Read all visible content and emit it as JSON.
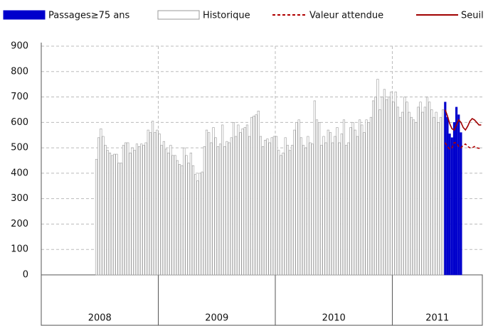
{
  "chart_data": {
    "type": "bar",
    "years": [
      "2008",
      "2009",
      "2010",
      "2011"
    ],
    "ylim": [
      0,
      900
    ],
    "yticks": [
      0,
      100,
      200,
      300,
      400,
      500,
      600,
      700,
      800,
      900
    ],
    "grid": true,
    "series": [
      {
        "name": "Passages≥75 ans",
        "type": "bar",
        "color": "#0000cc",
        "values": [
          null,
          null,
          null,
          null,
          null,
          null,
          null,
          null,
          null,
          null,
          null,
          null,
          null,
          null,
          null,
          null,
          null,
          null,
          null,
          null,
          null,
          null,
          null,
          null,
          null,
          null,
          null,
          null,
          null,
          null,
          null,
          null,
          null,
          null,
          null,
          null,
          null,
          null,
          null,
          null,
          null,
          null,
          null,
          null,
          null,
          null,
          null,
          null,
          null,
          null,
          null,
          null,
          null,
          null,
          null,
          null,
          null,
          null,
          null,
          null,
          null,
          null,
          null,
          null,
          null,
          null,
          null,
          null,
          null,
          null,
          null,
          null,
          null,
          null,
          null,
          null,
          null,
          null,
          null,
          null,
          null,
          null,
          null,
          null,
          null,
          null,
          null,
          null,
          null,
          null,
          null,
          null,
          null,
          null,
          null,
          null,
          null,
          null,
          null,
          null,
          null,
          null,
          null,
          null,
          null,
          null,
          null,
          null,
          null,
          null,
          null,
          null,
          null,
          null,
          null,
          null,
          null,
          null,
          null,
          null,
          null,
          null,
          null,
          null,
          null,
          null,
          null,
          null,
          null,
          null,
          null,
          null,
          null,
          null,
          null,
          null,
          null,
          null,
          null,
          null,
          null,
          null,
          null,
          null,
          null,
          null,
          null,
          null,
          null,
          null,
          null,
          null,
          null,
          null,
          null,
          null,
          null,
          null,
          null,
          null,
          null,
          null,
          null,
          null,
          null,
          null,
          null,
          null,
          null,
          null,
          null,
          null,
          null,
          null,
          null,
          null,
          null,
          null,
          null,
          680,
          620,
          555,
          540,
          600,
          660,
          630,
          560,
          null,
          null,
          null,
          null,
          null,
          null,
          null,
          null,
          null
        ]
      },
      {
        "name": "Historique",
        "type": "bar",
        "color": "#ffffff",
        "values": [
          null,
          null,
          null,
          null,
          null,
          null,
          null,
          null,
          null,
          null,
          null,
          null,
          null,
          null,
          null,
          null,
          null,
          null,
          null,
          null,
          null,
          null,
          null,
          null,
          455,
          540,
          575,
          545,
          510,
          490,
          480,
          470,
          475,
          475,
          440,
          440,
          510,
          520,
          520,
          480,
          500,
          490,
          515,
          505,
          515,
          510,
          520,
          570,
          560,
          605,
          560,
          570,
          555,
          510,
          525,
          495,
          480,
          510,
          470,
          470,
          450,
          435,
          430,
          500,
          470,
          440,
          480,
          430,
          395,
          370,
          400,
          405,
          505,
          570,
          560,
          520,
          580,
          540,
          505,
          515,
          590,
          505,
          525,
          520,
          540,
          600,
          545,
          590,
          560,
          575,
          580,
          590,
          545,
          620,
          625,
          630,
          645,
          545,
          505,
          530,
          535,
          520,
          540,
          545,
          545,
          490,
          470,
          480,
          540,
          510,
          490,
          510,
          570,
          600,
          610,
          540,
          510,
          500,
          545,
          520,
          515,
          685,
          610,
          600,
          510,
          545,
          520,
          570,
          560,
          520,
          545,
          580,
          520,
          555,
          610,
          510,
          520,
          580,
          600,
          570,
          545,
          610,
          590,
          560,
          610,
          600,
          620,
          685,
          700,
          770,
          650,
          700,
          730,
          690,
          700,
          720,
          680,
          720,
          660,
          620,
          640,
          700,
          680,
          640,
          620,
          610,
          600,
          660,
          680,
          640,
          660,
          700,
          680,
          650,
          620,
          640,
          600,
          620,
          650,
          null,
          null,
          null,
          null,
          null,
          null,
          null,
          null,
          null,
          null,
          null,
          null,
          null,
          null,
          null,
          null,
          null
        ]
      },
      {
        "name": "Valeur attendue",
        "type": "line",
        "dashed": true,
        "color": "#b00000",
        "values": [
          null,
          null,
          null,
          null,
          null,
          null,
          null,
          null,
          null,
          null,
          null,
          null,
          null,
          null,
          null,
          null,
          null,
          null,
          null,
          null,
          null,
          null,
          null,
          null,
          null,
          null,
          null,
          null,
          null,
          null,
          null,
          null,
          null,
          null,
          null,
          null,
          null,
          null,
          null,
          null,
          null,
          null,
          null,
          null,
          null,
          null,
          null,
          null,
          null,
          null,
          null,
          null,
          null,
          null,
          null,
          null,
          null,
          null,
          null,
          null,
          null,
          null,
          null,
          null,
          null,
          null,
          null,
          null,
          null,
          null,
          null,
          null,
          null,
          null,
          null,
          null,
          null,
          null,
          null,
          null,
          null,
          null,
          null,
          null,
          null,
          null,
          null,
          null,
          null,
          null,
          null,
          null,
          null,
          null,
          null,
          null,
          null,
          null,
          null,
          null,
          null,
          null,
          null,
          null,
          null,
          null,
          null,
          null,
          null,
          null,
          null,
          null,
          null,
          null,
          null,
          null,
          null,
          null,
          null,
          null,
          null,
          null,
          null,
          null,
          null,
          null,
          null,
          null,
          null,
          null,
          null,
          null,
          null,
          null,
          null,
          null,
          null,
          null,
          null,
          null,
          null,
          null,
          null,
          null,
          null,
          null,
          null,
          null,
          null,
          null,
          null,
          null,
          null,
          null,
          null,
          null,
          null,
          null,
          null,
          null,
          null,
          null,
          null,
          null,
          null,
          null,
          null,
          null,
          null,
          null,
          null,
          null,
          null,
          null,
          null,
          null,
          null,
          null,
          null,
          520,
          505,
          495,
          500,
          520,
          520,
          505,
          500,
          510,
          515,
          505,
          500,
          500,
          505,
          500,
          498,
          500
        ]
      },
      {
        "name": "Seuil",
        "type": "line",
        "dashed": false,
        "color": "#a00000",
        "values": [
          null,
          null,
          null,
          null,
          null,
          null,
          null,
          null,
          null,
          null,
          null,
          null,
          null,
          null,
          null,
          null,
          null,
          null,
          null,
          null,
          null,
          null,
          null,
          null,
          null,
          null,
          null,
          null,
          null,
          null,
          null,
          null,
          null,
          null,
          null,
          null,
          null,
          null,
          null,
          null,
          null,
          null,
          null,
          null,
          null,
          null,
          null,
          null,
          null,
          null,
          null,
          null,
          null,
          null,
          null,
          null,
          null,
          null,
          null,
          null,
          null,
          null,
          null,
          null,
          null,
          null,
          null,
          null,
          null,
          null,
          null,
          null,
          null,
          null,
          null,
          null,
          null,
          null,
          null,
          null,
          null,
          null,
          null,
          null,
          null,
          null,
          null,
          null,
          null,
          null,
          null,
          null,
          null,
          null,
          null,
          null,
          null,
          null,
          null,
          null,
          null,
          null,
          null,
          null,
          null,
          null,
          null,
          null,
          null,
          null,
          null,
          null,
          null,
          null,
          null,
          null,
          null,
          null,
          null,
          null,
          null,
          null,
          null,
          null,
          null,
          null,
          null,
          null,
          null,
          null,
          null,
          null,
          null,
          null,
          null,
          null,
          null,
          null,
          null,
          null,
          null,
          null,
          null,
          null,
          null,
          null,
          null,
          null,
          null,
          null,
          null,
          null,
          null,
          null,
          null,
          null,
          null,
          null,
          null,
          null,
          null,
          null,
          null,
          null,
          null,
          null,
          null,
          null,
          null,
          null,
          null,
          null,
          null,
          null,
          null,
          null,
          null,
          null,
          null,
          650,
          625,
          595,
          575,
          570,
          590,
          610,
          600,
          580,
          570,
          585,
          605,
          615,
          610,
          600,
          590,
          590
        ]
      }
    ]
  }
}
